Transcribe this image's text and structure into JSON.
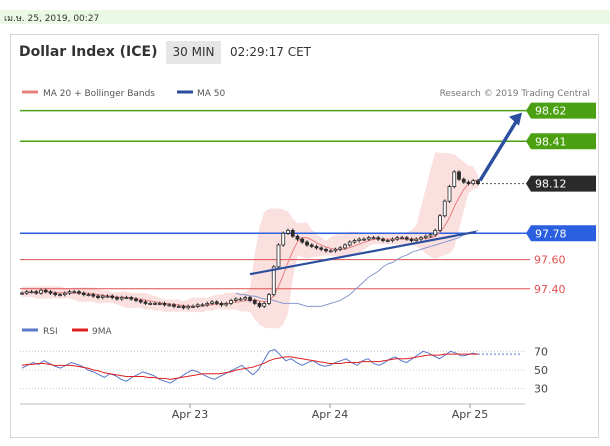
{
  "timestamp": "เม.ษ. 25, 2019, 00:27",
  "header": {
    "title": "Dollar Index (ICE)",
    "timeframe": "30 MIN",
    "time": "02:29:17 CET"
  },
  "legend": {
    "ma20_bb": "MA 20 + Bollinger Bands",
    "ma50": "MA 50",
    "copyright": "Research © 2019 Trading Central",
    "rsi": "RSI",
    "ma9": "9MA"
  },
  "colors": {
    "candle": "#2a2a2a",
    "bands": "#f8cccc",
    "ma20": "#e88080",
    "ma50": "#8899cc",
    "trendline": "#2b4f9e",
    "resistance": "#4aa010",
    "support": "#e05050",
    "pivot": "#2a5fe0",
    "current": "#2a2a2a",
    "rsi": "#5a78cc",
    "rsi_ma": "#e02020"
  },
  "chart_data": [
    {
      "type": "candlestick",
      "title": "Dollar Index (ICE)",
      "timeframe": "30 MIN",
      "x_tick_labels": [
        "Apr 23",
        "Apr 24",
        "Apr 25"
      ],
      "y_tick_labels": [
        "98.62",
        "98.41",
        "98.12",
        "97.78",
        "97.60",
        "97.40"
      ],
      "ylim": [
        97.2,
        98.72
      ],
      "levels": [
        {
          "value": 98.62,
          "label": "98.62",
          "kind": "resistance"
        },
        {
          "value": 98.41,
          "label": "98.41",
          "kind": "resistance"
        },
        {
          "value": 98.12,
          "label": "98.12",
          "kind": "current"
        },
        {
          "value": 97.78,
          "label": "97.78",
          "kind": "pivot"
        },
        {
          "value": 97.6,
          "label": "97.60",
          "kind": "support"
        },
        {
          "value": 97.4,
          "label": "97.40",
          "kind": "support"
        }
      ],
      "close": [
        97.37,
        97.38,
        97.38,
        97.37,
        97.39,
        97.38,
        97.37,
        97.36,
        97.36,
        97.37,
        97.38,
        97.38,
        97.37,
        97.36,
        97.36,
        97.35,
        97.34,
        97.35,
        97.35,
        97.34,
        97.33,
        97.34,
        97.34,
        97.33,
        97.32,
        97.31,
        97.3,
        97.3,
        97.3,
        97.3,
        97.29,
        97.29,
        97.28,
        97.28,
        97.27,
        97.28,
        97.28,
        97.29,
        97.29,
        97.3,
        97.31,
        97.3,
        97.29,
        97.3,
        97.32,
        97.33,
        97.33,
        97.34,
        97.32,
        97.3,
        97.28,
        97.3,
        97.36,
        97.55,
        97.7,
        97.78,
        97.8,
        97.76,
        97.74,
        97.72,
        97.7,
        97.69,
        97.68,
        97.67,
        97.66,
        97.66,
        97.67,
        97.68,
        97.7,
        97.72,
        97.73,
        97.74,
        97.74,
        97.75,
        97.75,
        97.74,
        97.73,
        97.73,
        97.74,
        97.75,
        97.75,
        97.74,
        97.73,
        97.74,
        97.75,
        97.76,
        97.77,
        97.8,
        97.9,
        98.0,
        98.1,
        98.2,
        98.15,
        98.13,
        98.12,
        98.14,
        98.12
      ],
      "ma50": [
        97.37,
        97.36,
        97.36,
        97.35,
        97.35,
        97.34,
        97.33,
        97.33,
        97.32,
        97.31,
        97.3,
        97.3,
        97.3,
        97.3,
        97.29,
        97.28,
        97.28,
        97.28,
        97.28,
        97.29,
        97.3,
        97.31,
        97.32,
        97.34,
        97.36,
        97.39,
        97.42,
        97.45,
        97.48,
        97.5,
        97.52,
        97.55,
        97.57,
        97.58,
        97.6,
        97.62,
        97.63,
        97.65,
        97.66,
        97.67,
        97.68,
        97.69,
        97.7,
        97.71,
        97.72,
        97.73,
        97.74,
        97.75,
        97.77,
        97.78,
        97.79,
        97.8
      ],
      "trendline_from": 97.5,
      "trendline_to": 97.79,
      "projection_from": 98.12,
      "projection_to": 98.62
    },
    {
      "type": "line",
      "title": "RSI",
      "y_tick_labels": [
        "70",
        "50",
        "30"
      ],
      "ylim": [
        20,
        80
      ],
      "series": [
        {
          "name": "RSI",
          "values": [
            52,
            55,
            58,
            56,
            60,
            57,
            54,
            52,
            55,
            58,
            56,
            54,
            50,
            48,
            45,
            42,
            46,
            44,
            40,
            38,
            42,
            45,
            48,
            46,
            44,
            40,
            38,
            36,
            40,
            43,
            47,
            50,
            48,
            45,
            42,
            40,
            43,
            46,
            49,
            52,
            55,
            50,
            45,
            50,
            60,
            70,
            72,
            66,
            60,
            62,
            58,
            55,
            58,
            60,
            56,
            54,
            55,
            58,
            60,
            62,
            58,
            55,
            60,
            62,
            57,
            55,
            58,
            62,
            64,
            60,
            58,
            62,
            66,
            70,
            68,
            65,
            62,
            66,
            70,
            68,
            65,
            66,
            68,
            67
          ],
          "display_limit": 66
        },
        {
          "name": "9MA",
          "values": [
            55,
            56,
            56,
            57,
            57,
            56,
            55,
            55,
            55,
            55,
            54,
            53,
            52,
            50,
            49,
            47,
            46,
            45,
            44,
            43,
            43,
            43,
            43,
            42,
            42,
            41,
            41,
            40,
            41,
            42,
            43,
            44,
            45,
            46,
            46,
            46,
            46,
            47,
            48,
            50,
            51,
            52,
            53,
            55,
            57,
            60,
            62,
            63,
            64,
            64,
            63,
            62,
            61,
            60,
            59,
            58,
            57,
            57,
            57,
            58,
            58,
            58,
            59,
            59,
            59,
            59,
            60,
            61,
            62,
            62,
            62,
            63,
            64,
            65,
            66,
            66,
            66,
            67,
            67,
            67,
            67,
            67,
            67,
            67
          ],
          "display_limit": 78
        }
      ]
    }
  ]
}
